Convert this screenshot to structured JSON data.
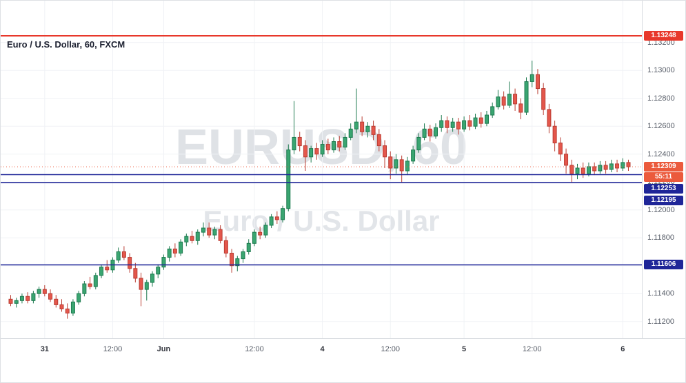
{
  "legend": {
    "title": "Euro / U.S. Dollar, 60, FXCM"
  },
  "watermark": {
    "line1": "EURUSD, 60",
    "line2": "Euro / U.S. Dollar"
  },
  "colors": {
    "grid": "#f0f2f6",
    "axis_text": "#555b66",
    "watermark": "#dfe2e6"
  },
  "price_axis": {
    "ticks": [
      1.132,
      1.13,
      1.128,
      1.126,
      1.124,
      1.122,
      1.12,
      1.118,
      1.116,
      1.114,
      1.112
    ],
    "decimals": 5
  },
  "time_axis": {
    "ticks": [
      {
        "label": "31",
        "candle": 6,
        "strong": true
      },
      {
        "label": "12:00",
        "candle": 18,
        "strong": false
      },
      {
        "label": "Jun",
        "candle": 27,
        "strong": true
      },
      {
        "label": "12:00",
        "candle": 43,
        "strong": false
      },
      {
        "label": "4",
        "candle": 55,
        "strong": true
      },
      {
        "label": "12:00",
        "candle": 67,
        "strong": false
      },
      {
        "label": "5",
        "candle": 80,
        "strong": true
      },
      {
        "label": "12:00",
        "candle": 92,
        "strong": false
      },
      {
        "label": "6",
        "candle": 108,
        "strong": true
      }
    ]
  },
  "levels": {
    "resistance": {
      "price": 1.13248,
      "label": "1.13248",
      "color": "#e8382b"
    },
    "last": {
      "price": 1.12309,
      "label": "1.12309",
      "countdown": "55:11",
      "color": "#eb5a3c"
    },
    "supports": [
      {
        "price": 1.12253,
        "label": "1.12253"
      },
      {
        "price": 1.12195,
        "label": "1.12195"
      },
      {
        "price": 1.11606,
        "label": "1.11606"
      }
    ],
    "support_color": "#1f2698"
  },
  "chart_data": {
    "type": "candlestick",
    "title": "Euro / U.S. Dollar, 60, FXCM",
    "ylim": [
      1.1108,
      1.135
    ],
    "up_color": "#3aa571",
    "up_border": "#1d7a4f",
    "down_color": "#e4574c",
    "down_border": "#b93c32",
    "candles_ohlc": [
      [
        1.1136,
        1.1139,
        1.1131,
        1.1133
      ],
      [
        1.1133,
        1.1137,
        1.113,
        1.1135
      ],
      [
        1.1135,
        1.114,
        1.1133,
        1.1138
      ],
      [
        1.1138,
        1.1141,
        1.1133,
        1.1135
      ],
      [
        1.1135,
        1.1142,
        1.1133,
        1.114
      ],
      [
        1.114,
        1.1145,
        1.1137,
        1.1143
      ],
      [
        1.1143,
        1.1146,
        1.1138,
        1.114
      ],
      [
        1.114,
        1.1143,
        1.1134,
        1.1136
      ],
      [
        1.1136,
        1.1139,
        1.113,
        1.1132
      ],
      [
        1.1132,
        1.1136,
        1.1127,
        1.1129
      ],
      [
        1.1129,
        1.1133,
        1.1122,
        1.1126
      ],
      [
        1.1126,
        1.1136,
        1.1124,
        1.1134
      ],
      [
        1.1134,
        1.1142,
        1.1132,
        1.114
      ],
      [
        1.114,
        1.1149,
        1.1138,
        1.1147
      ],
      [
        1.1147,
        1.1152,
        1.1143,
        1.1145
      ],
      [
        1.1145,
        1.1155,
        1.1143,
        1.1153
      ],
      [
        1.1153,
        1.1161,
        1.1151,
        1.1159
      ],
      [
        1.1159,
        1.1164,
        1.1155,
        1.1157
      ],
      [
        1.1157,
        1.1166,
        1.1155,
        1.1164
      ],
      [
        1.1164,
        1.1173,
        1.1162,
        1.117
      ],
      [
        1.117,
        1.1174,
        1.1164,
        1.1166
      ],
      [
        1.1166,
        1.1169,
        1.1155,
        1.1158
      ],
      [
        1.1158,
        1.1162,
        1.1148,
        1.1151
      ],
      [
        1.1151,
        1.1155,
        1.1131,
        1.1143
      ],
      [
        1.1143,
        1.115,
        1.1135,
        1.1148
      ],
      [
        1.1148,
        1.1156,
        1.1145,
        1.1154
      ],
      [
        1.1154,
        1.1161,
        1.1151,
        1.1159
      ],
      [
        1.1159,
        1.1168,
        1.1157,
        1.1166
      ],
      [
        1.1166,
        1.1174,
        1.1163,
        1.1172
      ],
      [
        1.1172,
        1.1176,
        1.1166,
        1.1169
      ],
      [
        1.1169,
        1.1179,
        1.1167,
        1.1177
      ],
      [
        1.1177,
        1.1183,
        1.1174,
        1.1181
      ],
      [
        1.1181,
        1.1185,
        1.1176,
        1.1178
      ],
      [
        1.1178,
        1.1186,
        1.1175,
        1.1184
      ],
      [
        1.1184,
        1.1191,
        1.1181,
        1.1187
      ],
      [
        1.1187,
        1.1191,
        1.118,
        1.1182
      ],
      [
        1.1182,
        1.1188,
        1.1179,
        1.1186
      ],
      [
        1.1186,
        1.1189,
        1.1176,
        1.1178
      ],
      [
        1.1178,
        1.1181,
        1.1166,
        1.1169
      ],
      [
        1.1169,
        1.1172,
        1.1155,
        1.116
      ],
      [
        1.116,
        1.1167,
        1.1156,
        1.1165
      ],
      [
        1.1165,
        1.1172,
        1.1162,
        1.117
      ],
      [
        1.117,
        1.1179,
        1.1168,
        1.1176
      ],
      [
        1.1176,
        1.1186,
        1.1174,
        1.1184
      ],
      [
        1.1184,
        1.1188,
        1.1179,
        1.1182
      ],
      [
        1.1182,
        1.1191,
        1.118,
        1.1189
      ],
      [
        1.1189,
        1.1197,
        1.1187,
        1.1195
      ],
      [
        1.1195,
        1.1199,
        1.119,
        1.1193
      ],
      [
        1.1193,
        1.1203,
        1.1191,
        1.1201
      ],
      [
        1.1201,
        1.1247,
        1.1199,
        1.1243
      ],
      [
        1.1243,
        1.1278,
        1.124,
        1.1252
      ],
      [
        1.1252,
        1.1256,
        1.1242,
        1.1246
      ],
      [
        1.1246,
        1.125,
        1.1228,
        1.1238
      ],
      [
        1.1238,
        1.1246,
        1.1234,
        1.1244
      ],
      [
        1.1244,
        1.1248,
        1.1236,
        1.124
      ],
      [
        1.124,
        1.125,
        1.1238,
        1.1247
      ],
      [
        1.1247,
        1.1251,
        1.124,
        1.1243
      ],
      [
        1.1243,
        1.1252,
        1.1241,
        1.1249
      ],
      [
        1.1249,
        1.1253,
        1.1242,
        1.1245
      ],
      [
        1.1245,
        1.1255,
        1.1243,
        1.1252
      ],
      [
        1.1252,
        1.1262,
        1.125,
        1.1258
      ],
      [
        1.1258,
        1.1287,
        1.1255,
        1.1263
      ],
      [
        1.1263,
        1.1267,
        1.1253,
        1.1256
      ],
      [
        1.1256,
        1.1263,
        1.1252,
        1.126
      ],
      [
        1.126,
        1.1264,
        1.125,
        1.1254
      ],
      [
        1.1254,
        1.1258,
        1.1242,
        1.1246
      ],
      [
        1.1246,
        1.125,
        1.123,
        1.1238
      ],
      [
        1.1238,
        1.1242,
        1.1222,
        1.123
      ],
      [
        1.123,
        1.124,
        1.1226,
        1.1236
      ],
      [
        1.1236,
        1.1239,
        1.122,
        1.1228
      ],
      [
        1.1228,
        1.1238,
        1.1225,
        1.1235
      ],
      [
        1.1235,
        1.1246,
        1.1233,
        1.1243
      ],
      [
        1.1243,
        1.1255,
        1.1241,
        1.1252
      ],
      [
        1.1252,
        1.1262,
        1.125,
        1.1258
      ],
      [
        1.1258,
        1.1261,
        1.1249,
        1.1253
      ],
      [
        1.1253,
        1.1262,
        1.1251,
        1.1259
      ],
      [
        1.1259,
        1.1268,
        1.1256,
        1.1264
      ],
      [
        1.1264,
        1.1267,
        1.1255,
        1.1259
      ],
      [
        1.1259,
        1.1266,
        1.1256,
        1.1263
      ],
      [
        1.1263,
        1.1266,
        1.1254,
        1.1258
      ],
      [
        1.1258,
        1.1267,
        1.1256,
        1.1264
      ],
      [
        1.1264,
        1.1268,
        1.1257,
        1.126
      ],
      [
        1.126,
        1.1269,
        1.1258,
        1.1266
      ],
      [
        1.1266,
        1.127,
        1.1259,
        1.1262
      ],
      [
        1.1262,
        1.1271,
        1.126,
        1.1268
      ],
      [
        1.1268,
        1.1277,
        1.1266,
        1.1274
      ],
      [
        1.1274,
        1.1286,
        1.1272,
        1.1281
      ],
      [
        1.1281,
        1.1285,
        1.1272,
        1.1275
      ],
      [
        1.1275,
        1.1292,
        1.1273,
        1.1283
      ],
      [
        1.1283,
        1.1287,
        1.1271,
        1.1276
      ],
      [
        1.1276,
        1.128,
        1.1265,
        1.127
      ],
      [
        1.127,
        1.1295,
        1.1268,
        1.1292
      ],
      [
        1.1292,
        1.1307,
        1.1288,
        1.1297
      ],
      [
        1.1297,
        1.1301,
        1.1283,
        1.1287
      ],
      [
        1.1287,
        1.1291,
        1.1268,
        1.1272
      ],
      [
        1.1272,
        1.1276,
        1.1255,
        1.126
      ],
      [
        1.126,
        1.1264,
        1.1242,
        1.1248
      ],
      [
        1.1248,
        1.1252,
        1.1235,
        1.124
      ],
      [
        1.124,
        1.1244,
        1.1226,
        1.1232
      ],
      [
        1.1232,
        1.1236,
        1.122,
        1.1226
      ],
      [
        1.1226,
        1.1233,
        1.1222,
        1.123
      ],
      [
        1.123,
        1.1234,
        1.1223,
        1.1226
      ],
      [
        1.1226,
        1.1234,
        1.1224,
        1.1231
      ],
      [
        1.1231,
        1.1234,
        1.1225,
        1.1228
      ],
      [
        1.1228,
        1.1235,
        1.1226,
        1.1232
      ],
      [
        1.1232,
        1.1235,
        1.1226,
        1.1229
      ],
      [
        1.1229,
        1.1236,
        1.1227,
        1.1233
      ],
      [
        1.1233,
        1.1236,
        1.1227,
        1.123
      ],
      [
        1.123,
        1.1237,
        1.1228,
        1.1234
      ],
      [
        1.1234,
        1.1236,
        1.1228,
        1.12309
      ]
    ]
  }
}
